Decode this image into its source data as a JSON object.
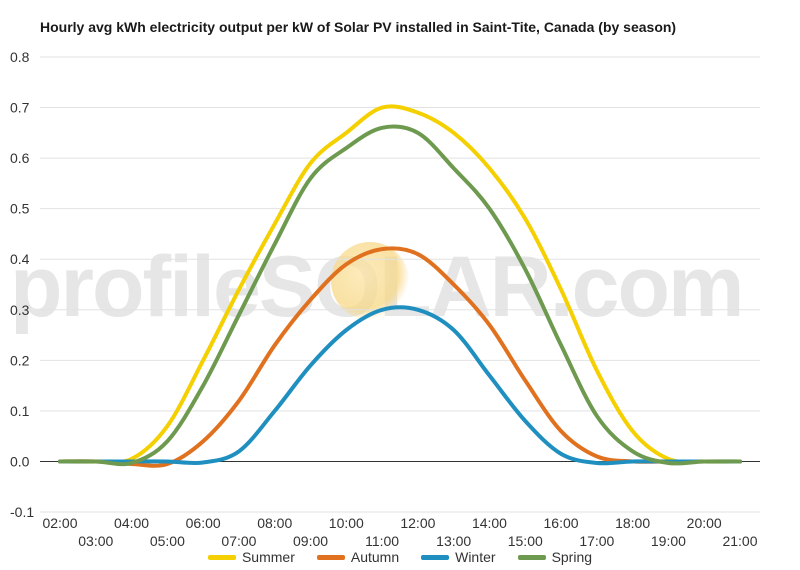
{
  "title": "Hourly avg kWh electricity output per kW of Solar PV installed in Saint-Tite, Canada (by season)",
  "watermark": "profileSOLAR.com",
  "chart_data": {
    "type": "line",
    "title": "Hourly avg kWh electricity output per kW of Solar PV installed in Saint-Tite, Canada (by season)",
    "xlabel": "",
    "ylabel": "",
    "x": [
      "02:00",
      "03:00",
      "04:00",
      "05:00",
      "06:00",
      "07:00",
      "08:00",
      "09:00",
      "10:00",
      "11:00",
      "12:00",
      "13:00",
      "14:00",
      "15:00",
      "16:00",
      "17:00",
      "18:00",
      "19:00",
      "20:00",
      "21:00"
    ],
    "x_ticks_upper": [
      "02:00",
      "04:00",
      "06:00",
      "08:00",
      "10:00",
      "12:00",
      "14:00",
      "16:00",
      "18:00",
      "20:00"
    ],
    "x_ticks_lower": [
      "03:00",
      "05:00",
      "07:00",
      "09:00",
      "11:00",
      "13:00",
      "15:00",
      "17:00",
      "19:00",
      "21:00"
    ],
    "ylim": [
      -0.1,
      0.8
    ],
    "yticks": [
      "-0.1",
      "0.0",
      "0.1",
      "0.2",
      "0.3",
      "0.4",
      "0.5",
      "0.6",
      "0.7",
      "0.8"
    ],
    "grid": true,
    "legend_position": "bottom",
    "series": [
      {
        "name": "Summer",
        "color": "#f5d000",
        "values": [
          0.0,
          0.0,
          0.005,
          0.07,
          0.2,
          0.34,
          0.47,
          0.59,
          0.65,
          0.7,
          0.69,
          0.65,
          0.58,
          0.48,
          0.34,
          0.18,
          0.06,
          0.005,
          0.0,
          0.0
        ]
      },
      {
        "name": "Autumn",
        "color": "#e0711e",
        "values": [
          0.0,
          0.0,
          -0.005,
          -0.005,
          0.04,
          0.12,
          0.23,
          0.32,
          0.39,
          0.42,
          0.41,
          0.35,
          0.27,
          0.16,
          0.06,
          0.01,
          0.0,
          0.0,
          0.0,
          0.0
        ]
      },
      {
        "name": "Winter",
        "color": "#1f8fc0",
        "values": [
          0.0,
          0.0,
          0.0,
          0.0,
          -0.002,
          0.02,
          0.1,
          0.19,
          0.26,
          0.3,
          0.3,
          0.26,
          0.17,
          0.08,
          0.015,
          -0.003,
          0.0,
          0.0,
          0.0,
          0.0
        ]
      },
      {
        "name": "Spring",
        "color": "#6e9a50",
        "values": [
          0.0,
          0.0,
          -0.003,
          0.04,
          0.15,
          0.29,
          0.43,
          0.56,
          0.62,
          0.66,
          0.65,
          0.58,
          0.5,
          0.38,
          0.23,
          0.09,
          0.02,
          -0.003,
          0.0,
          0.0
        ]
      }
    ]
  }
}
